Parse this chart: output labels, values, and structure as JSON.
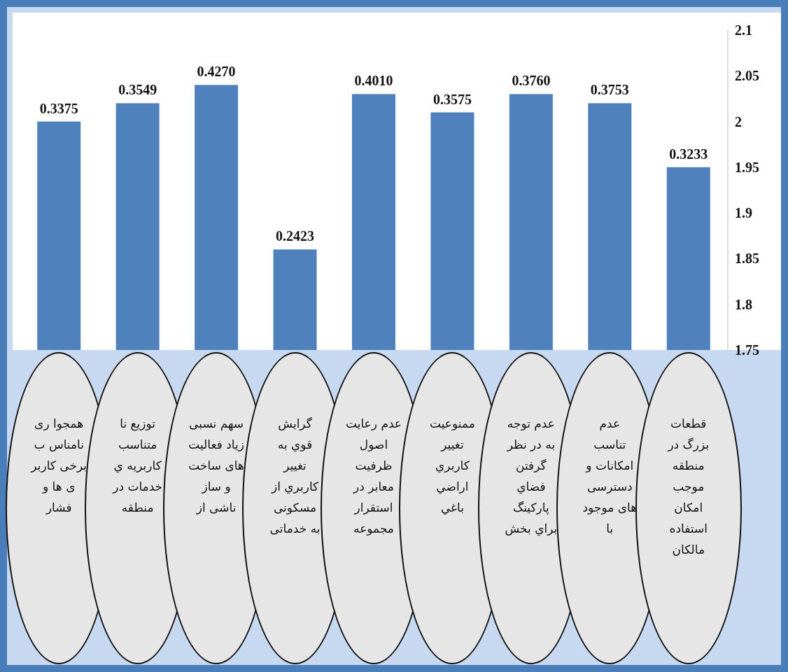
{
  "chart_data": {
    "type": "bar",
    "categories": [
      "همجوا ری نامناس ب برخی کاربر ی ها و فشار",
      "توزیع نا متناسب کاربریه ي خدمات در منطقه",
      "سهم نسبی زیاد فعالیت های ساخت و ساز ناشی از",
      "گرایش قوي به تغییر کاربري از مسکونی به خدماتی",
      "عدم رعایت اصول ظرفیت معابر در استقرار مجموعه",
      "ممنوعیت تغییر کاربري اراضي باغي",
      "عدم توجه به در نظر گرفتن فضاي پارکینگ براي بخش",
      "عدم تناسب امکانات و دسترسی های موجود با",
      "قطعات بزرگ در منطقه موجب امکان استفاده مالکان"
    ],
    "values": [
      2.0,
      2.02,
      2.04,
      1.86,
      2.03,
      2.01,
      2.03,
      2.02,
      1.95
    ],
    "annotations": [
      {
        "text": "0.3375",
        "x": "همجوا ری نامناس ب برخی کاربر ی ها و فشار",
        "y": 2.0
      },
      {
        "text": "0.3549",
        "x": "توزیع نا متناسب کاربریه ي خدمات در منطقه",
        "y": 2.02
      },
      {
        "text": "0.4270",
        "x": "سهم نسبی زیاد فعالیت های ساخت و ساز ناشی از",
        "y": 2.04
      },
      {
        "text": "0.2423",
        "x": "گرایش قوي به تغییر کاربري از مسکونی به خدماتی",
        "y": 1.86
      },
      {
        "text": "0.4010",
        "x": "عدم رعایت اصول ظرفیت معابر در استقرار مجموعه",
        "y": 2.03
      },
      {
        "text": "0.3575",
        "x": "ممنوعیت تغییر کاربري اراضي باغي",
        "y": 2.01
      },
      {
        "text": "0.3760",
        "x": "عدم توجه به در نظر گرفتن فضاي پارکینگ براي بخش",
        "y": 2.03
      },
      {
        "text": "0.3753",
        "x": "عدم تناسب امکانات و دسترسی های موجود با",
        "y": 2.02
      },
      {
        "text": "0.3233",
        "x": "قطعات بزرگ در منطقه موجب امکان استفاده مالکان",
        "y": 1.95
      }
    ],
    "color": "#4f81bd",
    "ylim": [
      1.75,
      2.1
    ],
    "yticks": [
      1.75,
      1.8,
      1.85,
      1.9,
      1.95,
      2,
      2.05,
      2.1
    ]
  }
}
